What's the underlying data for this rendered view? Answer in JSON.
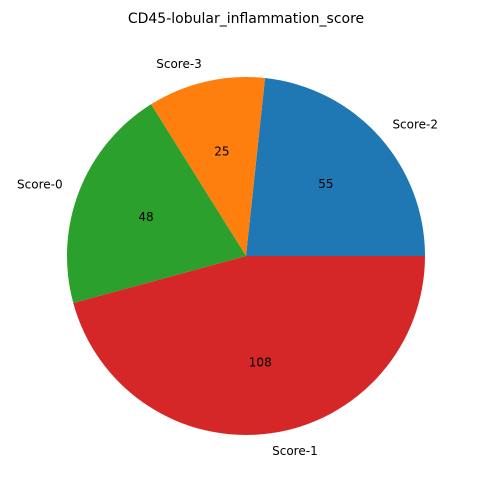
{
  "chart_data": {
    "type": "pie",
    "title": "CD45-lobular_inflammation_score",
    "slices": [
      {
        "label": "Score-2",
        "value": 55,
        "color": "#1f77b4"
      },
      {
        "label": "Score-3",
        "value": 25,
        "color": "#ff7f0e"
      },
      {
        "label": "Score-0",
        "value": 48,
        "color": "#2ca02c"
      },
      {
        "label": "Score-1",
        "value": 108,
        "color": "#d62728"
      }
    ],
    "start_angle_deg": 0,
    "direction": "counterclockwise"
  }
}
